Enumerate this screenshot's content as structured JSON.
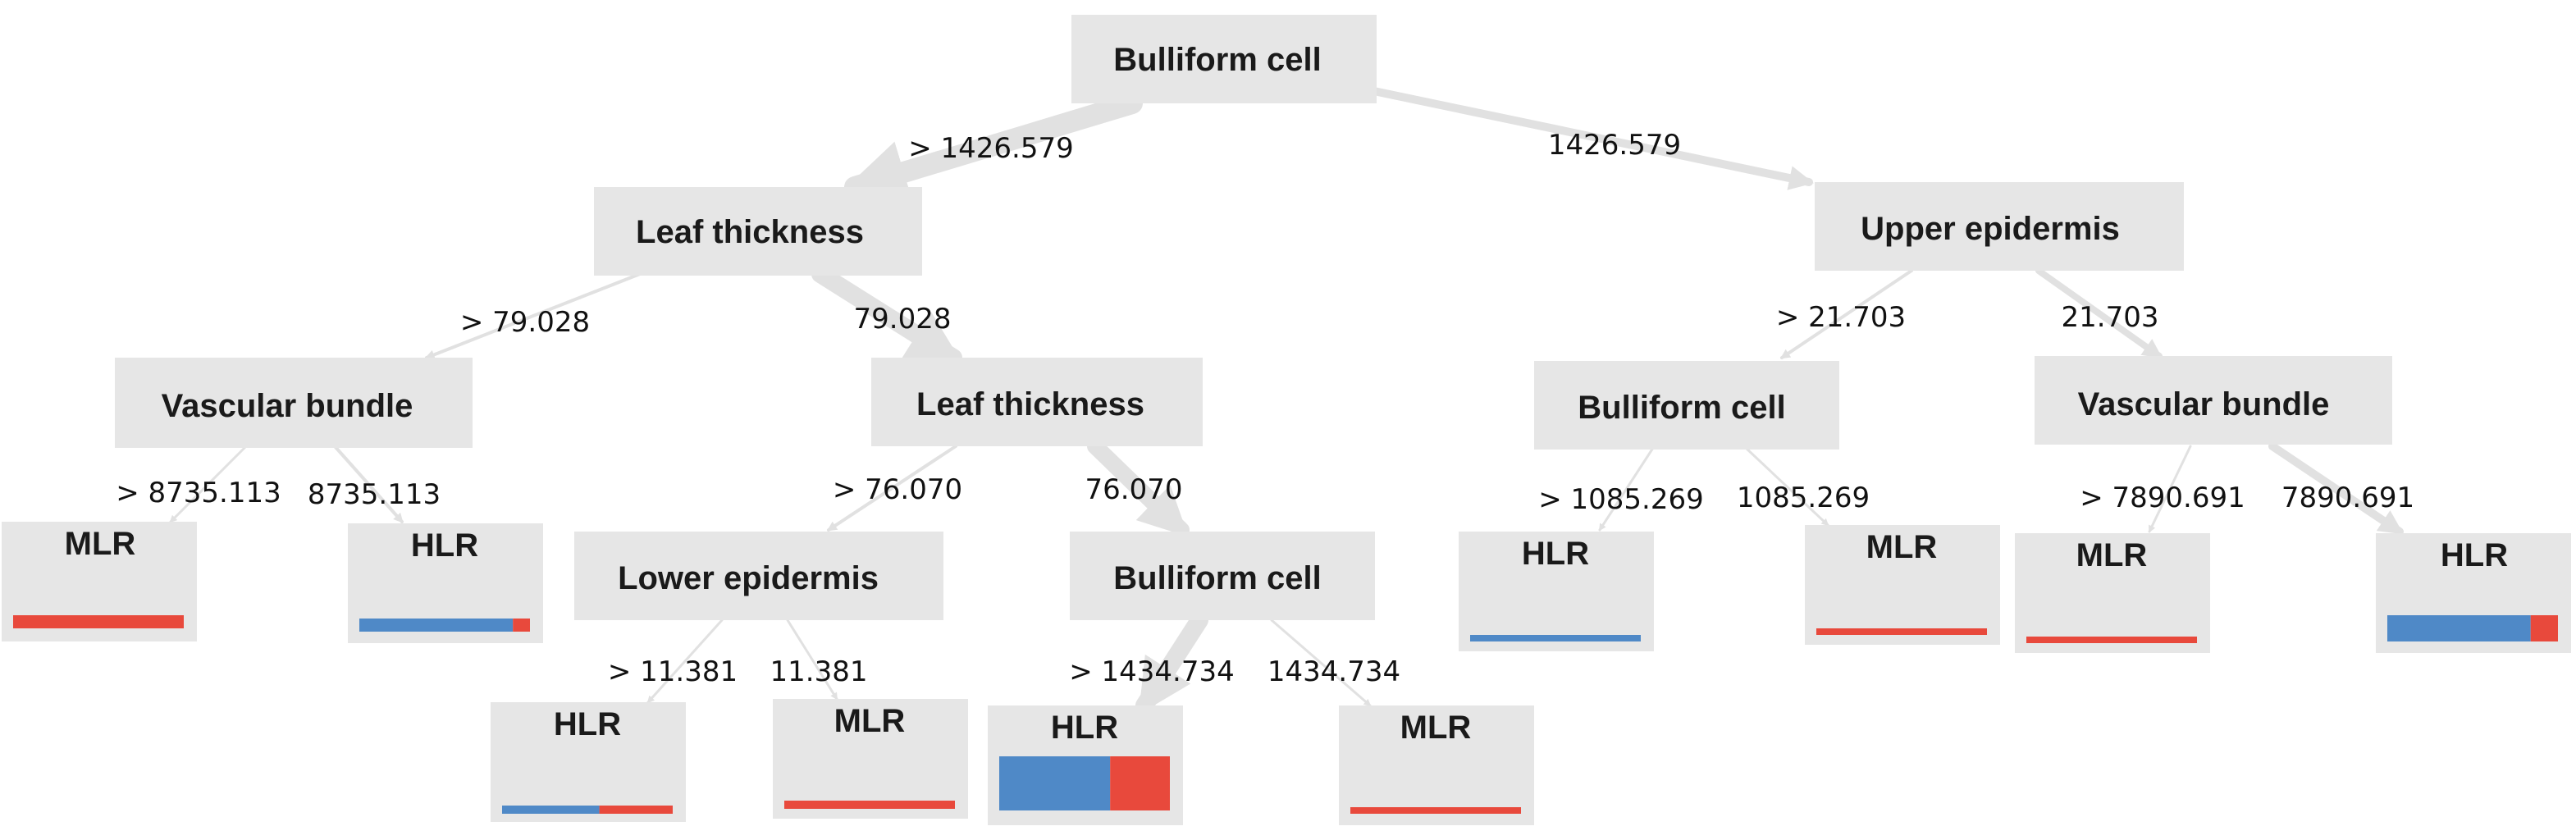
{
  "colors": {
    "node_fill": "#e6e6e6",
    "edge": "#e1e1e1",
    "hlr": "#4f89c7",
    "mlr": "#e8493c"
  },
  "nodes": {
    "root": "Bulliform cell",
    "leaf_thickness_1": "Leaf thickness",
    "upper_epidermis": "Upper epidermis",
    "vascular_bundle_1": "Vascular bundle",
    "leaf_thickness_2": "Leaf thickness",
    "bulliform_cell_2": "Bulliform cell",
    "vascular_bundle_2": "Vascular bundle",
    "lower_epidermis": "Lower epidermis",
    "bulliform_cell_3": "Bulliform cell"
  },
  "leaves": [
    {
      "label": "MLR",
      "hlr_fraction": 0.0
    },
    {
      "label": "HLR",
      "hlr_fraction": 0.9
    },
    {
      "label": "HLR",
      "hlr_fraction": 0.57
    },
    {
      "label": "MLR",
      "hlr_fraction": 0.0
    },
    {
      "label": "HLR",
      "hlr_fraction": 0.65
    },
    {
      "label": "MLR",
      "hlr_fraction": 0.0
    },
    {
      "label": "HLR",
      "hlr_fraction": 1.0
    },
    {
      "label": "MLR",
      "hlr_fraction": 0.0
    },
    {
      "label": "MLR",
      "hlr_fraction": 0.0
    },
    {
      "label": "HLR",
      "hlr_fraction": 0.84
    }
  ],
  "edges": {
    "root_left": "> 1426.579",
    "root_right": "1426.579",
    "lt1_left": "> 79.028",
    "lt1_right": "79.028",
    "ue_left": "> 21.703",
    "ue_right": "21.703",
    "vb1_left": "> 8735.113",
    "vb1_right": "8735.113",
    "lt2_left": "> 76.070",
    "lt2_right": "76.070",
    "bc2_left": "> 1085.269",
    "bc2_right": "1085.269",
    "vb2_left": "> 7890.691",
    "vb2_right": "7890.691",
    "le_left": "> 11.381",
    "le_right": "11.381",
    "bc3_left": "> 1434.734",
    "bc3_right": "1434.734"
  }
}
